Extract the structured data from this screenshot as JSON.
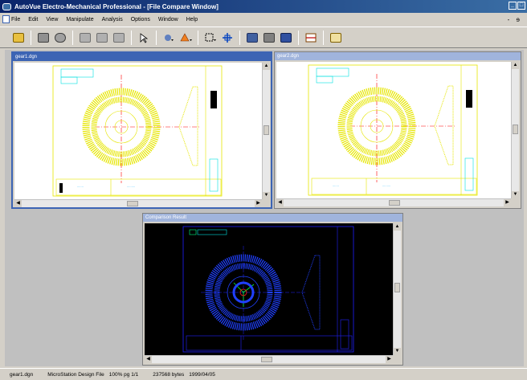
{
  "app": {
    "title": "AutoVue Electro-Mechanical Professional - [File Compare Window]",
    "window_controls": [
      "_",
      "□"
    ]
  },
  "menu": {
    "items": [
      "File",
      "Edit",
      "View",
      "Manipulate",
      "Analysis",
      "Options",
      "Window",
      "Help"
    ],
    "mdi_controls": "- ɘ"
  },
  "toolbar": {
    "icons": [
      "open-icon",
      "print-icon",
      "print-preview-icon",
      "page-prev-icon",
      "page-overlay-icon",
      "page-next-icon",
      "select-icon",
      "markup-icon",
      "color-icon",
      "zoom-window-icon",
      "fit-icon",
      "layers-icon",
      "convert-icon",
      "save-icon",
      "measure-icon",
      "info-icon"
    ]
  },
  "windows": {
    "left": {
      "title": "gear1.dgn"
    },
    "right": {
      "title": "gear2.dgn"
    },
    "comparison": {
      "title": "Comparison Result"
    }
  },
  "status": {
    "file": "gear1.dgn",
    "format": "MicroStation Design File",
    "zoom_page": "100%  pg 1/1",
    "size": "237568 bytes",
    "date": "1999/04/05"
  },
  "colors": {
    "drawing_yellow": "#ffff00",
    "drawing_blue": "#0000ff",
    "centerline_red": "#ff0000",
    "title_cyan": "#00ffff",
    "active_title": "#3c64b4"
  }
}
